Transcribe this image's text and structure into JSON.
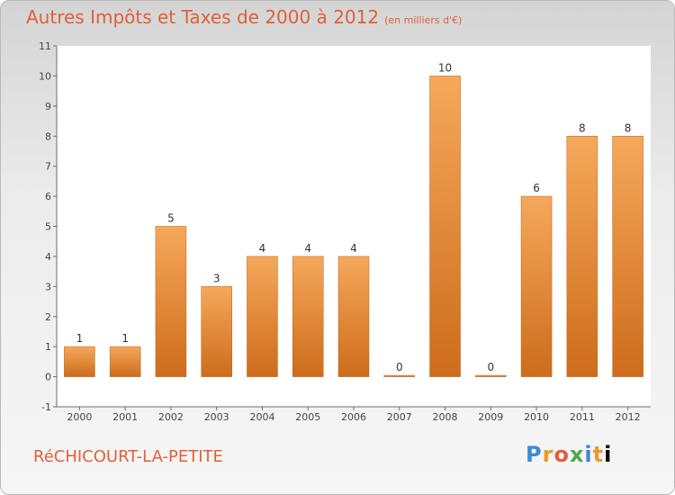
{
  "header": {
    "title": "Autres Impôts et Taxes de 2000 à 2012",
    "unit": "(en milliers d'€)"
  },
  "footer": {
    "commune": "RéCHICOURT-LA-PETITE",
    "logo": "Proxiti"
  },
  "colors": {
    "bar_light": "#f6a85a",
    "bar_dark": "#cd6c1c",
    "title": "#e0603a"
  },
  "chart_data": {
    "type": "bar",
    "categories": [
      "2000",
      "2001",
      "2002",
      "2003",
      "2004",
      "2005",
      "2006",
      "2007",
      "2008",
      "2009",
      "2010",
      "2011",
      "2012"
    ],
    "values": [
      1,
      1,
      5,
      3,
      4,
      4,
      4,
      0,
      10,
      0,
      6,
      8,
      8
    ],
    "data_labels": [
      "1",
      "1",
      "5",
      "3",
      "4",
      "4",
      "4",
      "0",
      "10",
      "0",
      "6",
      "8",
      "8"
    ],
    "y_ticks": [
      -1,
      0,
      1,
      2,
      3,
      4,
      5,
      6,
      7,
      8,
      9,
      10,
      11
    ],
    "ylim": [
      -1,
      11
    ],
    "grid": false,
    "legend": "none"
  }
}
